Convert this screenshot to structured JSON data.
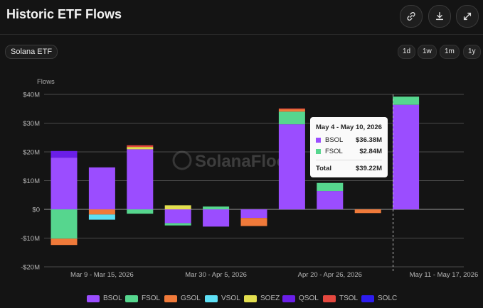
{
  "header": {
    "title": "Historic ETF Flows"
  },
  "icons": {
    "link": "link-icon",
    "download": "download-icon",
    "expand": "expand-icon"
  },
  "filter": {
    "selected": "Solana ETF"
  },
  "ranges": [
    "1d",
    "1w",
    "1m",
    "1y"
  ],
  "watermark": "SolanaFloor",
  "tooltip": {
    "title": "May 4 - May 10, 2026",
    "rows": [
      {
        "name": "BSOL",
        "value": "$36.38M",
        "color": "#9b4dff"
      },
      {
        "name": "FSOL",
        "value": "$2.84M",
        "color": "#56d68e"
      }
    ],
    "total_label": "Total",
    "total_value": "$39.22M"
  },
  "chart_data": {
    "type": "bar",
    "stacked": true,
    "ylabel": "Flows",
    "ylim": [
      -20,
      40
    ],
    "yticks": [
      40,
      30,
      20,
      10,
      0,
      -10,
      -20
    ],
    "ytick_labels": [
      "$40M",
      "$30M",
      "$20M",
      "$10M",
      "$0",
      "-$10M",
      "-$20M"
    ],
    "xtick_labels": [
      {
        "label": "Mar 9 - Mar 15, 2026",
        "index": 1
      },
      {
        "label": "Mar 30 - Apr 5, 2026",
        "index": 4
      },
      {
        "label": "Apr 20 - Apr 26, 2026",
        "index": 7
      },
      {
        "label": "May 11 - May 17, 2026",
        "index": 10
      }
    ],
    "grid": true,
    "legend_position": "bottom",
    "series": [
      {
        "name": "BSOL",
        "color": "#9b4dff",
        "values": [
          18,
          14.6,
          20.9,
          -4.8,
          -6,
          -3,
          29.6,
          6.4,
          0,
          36.38
        ]
      },
      {
        "name": "FSOL",
        "color": "#56d68e",
        "values": [
          -10.2,
          0,
          -1.5,
          -0.8,
          1,
          0,
          4.4,
          2.8,
          0,
          2.84
        ]
      },
      {
        "name": "GSOL",
        "color": "#f07a3a",
        "values": [
          -2.2,
          -1.8,
          0,
          0,
          0,
          -2.8,
          0.8,
          0,
          -1.3,
          0
        ]
      },
      {
        "name": "VSOL",
        "color": "#5ee0f5",
        "values": [
          0,
          -1.8,
          0,
          0,
          0,
          0,
          0,
          0,
          0,
          0
        ]
      },
      {
        "name": "SOEZ",
        "color": "#e3df4f",
        "values": [
          0,
          0,
          0.8,
          1.4,
          0,
          0,
          0,
          0,
          0,
          0
        ]
      },
      {
        "name": "QSOL",
        "color": "#6a1ee8",
        "values": [
          2.3,
          0,
          0,
          0,
          0,
          0,
          0,
          0,
          0,
          0
        ]
      },
      {
        "name": "TSOL",
        "color": "#e5483f",
        "values": [
          0,
          0,
          0.6,
          0,
          0,
          0,
          0.3,
          0,
          0,
          0
        ]
      },
      {
        "name": "SOLC",
        "color": "#2d1cf0",
        "values": [
          0,
          0,
          0,
          0,
          0,
          0,
          0,
          0,
          0,
          0
        ]
      }
    ]
  }
}
